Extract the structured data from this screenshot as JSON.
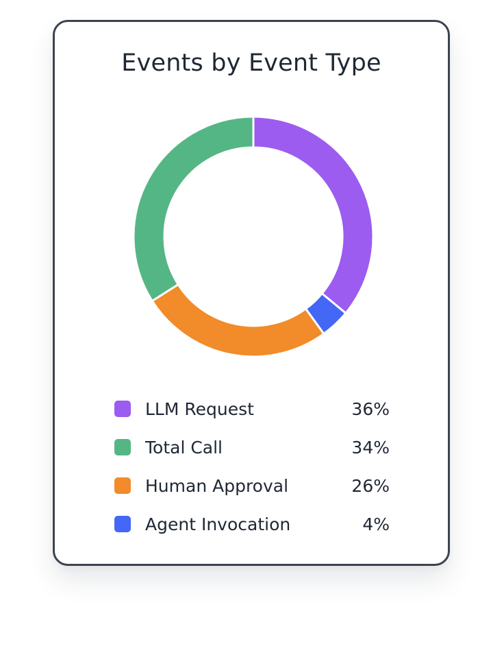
{
  "chart_data": {
    "type": "pie",
    "style": "donut",
    "title": "Events by Event Type",
    "categories": [
      "LLM Request",
      "Total Call",
      "Human Approval",
      "Agent Invocation"
    ],
    "values": [
      36,
      34,
      26,
      4
    ],
    "value_labels": [
      "36%",
      "34%",
      "26%",
      "4%"
    ],
    "colors": [
      "#9b5cef",
      "#55b685",
      "#f28b2a",
      "#4467f6"
    ],
    "slice_order_clockwise_from_top": [
      "LLM Request",
      "Agent Invocation",
      "Human Approval",
      "Total Call"
    ],
    "legend_position": "bottom"
  }
}
